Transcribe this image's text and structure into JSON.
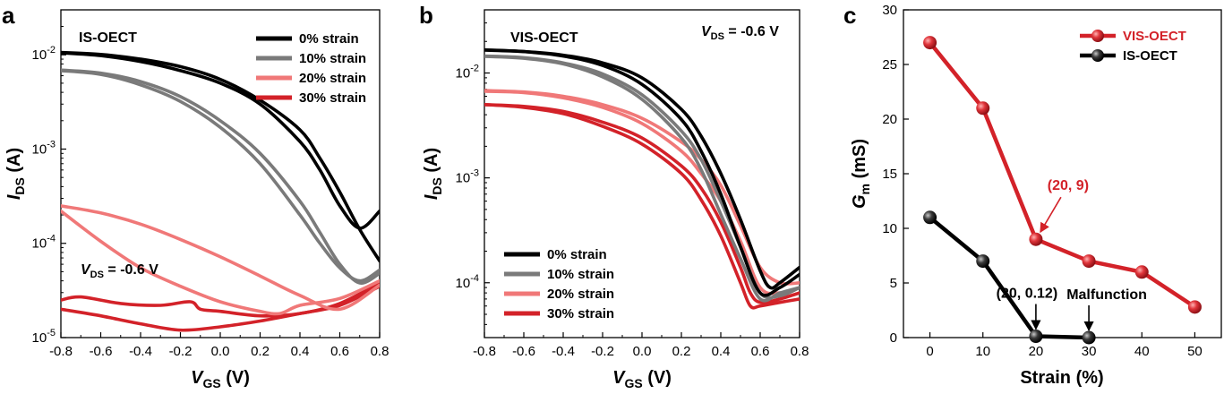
{
  "panels": {
    "a": {
      "letter": "a",
      "device": "IS-OECT",
      "vds_main": "V",
      "vds_sub": "DS",
      "vds_value": " = -0.6 V",
      "xlabel_main": "V",
      "xlabel_sub": "GS",
      "xlabel_unit": " (V)",
      "ylabel_main": "I",
      "ylabel_sub": "DS",
      "ylabel_unit": " (A)",
      "legend": [
        "0% strain",
        "10% strain",
        "20% strain",
        "30% strain"
      ]
    },
    "b": {
      "letter": "b",
      "device": "VIS-OECT",
      "vds_main": "V",
      "vds_sub": "DS",
      "vds_value": " = -0.6 V",
      "xlabel_main": "V",
      "xlabel_sub": "GS",
      "xlabel_unit": " (V)",
      "ylabel_main": "I",
      "ylabel_sub": "DS",
      "ylabel_unit": " (A)",
      "legend": [
        "0% strain",
        "10% strain",
        "20% strain",
        "30% strain"
      ]
    },
    "c": {
      "letter": "c",
      "xlabel": "Strain (%)",
      "ylabel_main": "G",
      "ylabel_sub": "m",
      "ylabel_unit": " (mS)",
      "legend": [
        "VIS-OECT",
        "IS-OECT"
      ],
      "annotation_red": "(20, 9)",
      "annotation_black": "(20, 0.12)",
      "annotation_malfunction": "Malfunction"
    }
  },
  "colors": {
    "black": "#000000",
    "gray": "#7a7a7a",
    "pink": "#f07878",
    "red": "#d32229"
  },
  "chart_data": [
    {
      "type": "line",
      "panel": "a",
      "title": "IS-OECT",
      "xlabel": "VGS (V)",
      "ylabel": "IDS (A)",
      "xlim": [
        -0.8,
        0.8
      ],
      "ylim": [
        1e-05,
        0.03
      ],
      "yscale": "log",
      "xticks": [
        "-0.8",
        "-0.6",
        "-0.4",
        "-0.2",
        "0.0",
        "0.2",
        "0.4",
        "0.6",
        "0.8"
      ],
      "yticks": [
        "10^-5",
        "10^-4",
        "10^-3",
        "10^-2"
      ],
      "legend_position": "top-right",
      "series": [
        {
          "name": "0% strain",
          "color": "black",
          "forward": [
            [
              -0.8,
              0.0105
            ],
            [
              -0.6,
              0.0098
            ],
            [
              -0.4,
              0.0085
            ],
            [
              -0.2,
              0.0068
            ],
            [
              0.0,
              0.005
            ],
            [
              0.2,
              0.003
            ],
            [
              0.4,
              0.0012
            ],
            [
              0.5,
              0.0006
            ],
            [
              0.6,
              0.00025
            ],
            [
              0.7,
              0.000145
            ],
            [
              0.8,
              0.00022
            ]
          ],
          "reverse": [
            [
              0.8,
              6.5e-05
            ],
            [
              0.7,
              0.00014
            ],
            [
              0.6,
              0.00035
            ],
            [
              0.5,
              0.0008
            ],
            [
              0.4,
              0.0016
            ],
            [
              0.2,
              0.0033
            ],
            [
              0.0,
              0.0055
            ],
            [
              -0.2,
              0.0075
            ],
            [
              -0.4,
              0.009
            ],
            [
              -0.6,
              0.0101
            ],
            [
              -0.8,
              0.0106
            ]
          ]
        },
        {
          "name": "10% strain",
          "color": "gray",
          "forward": [
            [
              -0.8,
              0.0068
            ],
            [
              -0.6,
              0.0062
            ],
            [
              -0.4,
              0.0048
            ],
            [
              -0.2,
              0.0032
            ],
            [
              0.0,
              0.0017
            ],
            [
              0.2,
              0.0007
            ],
            [
              0.4,
              0.0002
            ],
            [
              0.5,
              0.0001
            ],
            [
              0.6,
              5.5e-05
            ],
            [
              0.7,
              4e-05
            ],
            [
              0.8,
              5.2e-05
            ]
          ],
          "reverse": [
            [
              0.8,
              4.8e-05
            ],
            [
              0.7,
              3.8e-05
            ],
            [
              0.6,
              6e-05
            ],
            [
              0.5,
              0.00013
            ],
            [
              0.4,
              0.00028
            ],
            [
              0.2,
              0.0009
            ],
            [
              0.0,
              0.002
            ],
            [
              -0.2,
              0.0036
            ],
            [
              -0.4,
              0.0052
            ],
            [
              -0.6,
              0.0064
            ],
            [
              -0.8,
              0.0069
            ]
          ]
        },
        {
          "name": "20% strain",
          "color": "pink",
          "forward": [
            [
              -0.8,
              0.00025
            ],
            [
              -0.6,
              0.00021
            ],
            [
              -0.4,
              0.00016
            ],
            [
              -0.2,
              0.00011
            ],
            [
              0.0,
              7.2e-05
            ],
            [
              0.2,
              4.5e-05
            ],
            [
              0.4,
              2.8e-05
            ],
            [
              0.6,
              2e-05
            ],
            [
              0.8,
              3.6e-05
            ]
          ],
          "reverse": [
            [
              0.8,
              4e-05
            ],
            [
              0.6,
              2.6e-05
            ],
            [
              0.4,
              2.2e-05
            ],
            [
              0.3,
              1.8e-05
            ],
            [
              0.2,
              1.9e-05
            ],
            [
              0.0,
              2.4e-05
            ],
            [
              -0.2,
              3.5e-05
            ],
            [
              -0.4,
              5.5e-05
            ],
            [
              -0.6,
              0.000105
            ],
            [
              -0.8,
              0.00022
            ]
          ]
        },
        {
          "name": "30% strain",
          "color": "red",
          "forward": [
            [
              -0.8,
              2.5e-05
            ],
            [
              -0.7,
              2.7e-05
            ],
            [
              -0.5,
              2.3e-05
            ],
            [
              -0.3,
              2.2e-05
            ],
            [
              -0.15,
              2.4e-05
            ],
            [
              -0.1,
              2e-05
            ],
            [
              0.0,
              1.9e-05
            ],
            [
              0.2,
              1.7e-05
            ],
            [
              0.4,
              1.8e-05
            ],
            [
              0.6,
              2.3e-05
            ],
            [
              0.8,
              3.8e-05
            ]
          ],
          "reverse": [
            [
              0.8,
              3.5e-05
            ],
            [
              0.6,
              2.2e-05
            ],
            [
              0.4,
              1.8e-05
            ],
            [
              0.2,
              1.5e-05
            ],
            [
              0.0,
              1.3e-05
            ],
            [
              -0.2,
              1.2e-05
            ],
            [
              -0.4,
              1.4e-05
            ],
            [
              -0.6,
              1.7e-05
            ],
            [
              -0.8,
              2e-05
            ]
          ]
        }
      ]
    },
    {
      "type": "line",
      "panel": "b",
      "title": "VIS-OECT",
      "xlabel": "VGS (V)",
      "ylabel": "IDS (A)",
      "xlim": [
        -0.8,
        0.8
      ],
      "ylim": [
        3e-05,
        0.04
      ],
      "yscale": "log",
      "xticks": [
        "-0.8",
        "-0.6",
        "-0.4",
        "-0.2",
        "0.0",
        "0.2",
        "0.4",
        "0.6",
        "0.8"
      ],
      "yticks": [
        "10^-4",
        "10^-3",
        "10^-2"
      ],
      "legend_position": "bottom-left",
      "series": [
        {
          "name": "0% strain",
          "color": "black",
          "forward": [
            [
              -0.8,
              0.0165
            ],
            [
              -0.6,
              0.016
            ],
            [
              -0.4,
              0.0148
            ],
            [
              -0.2,
              0.0125
            ],
            [
              0.0,
              0.009
            ],
            [
              0.2,
              0.0045
            ],
            [
              0.3,
              0.0025
            ],
            [
              0.4,
              0.0011
            ],
            [
              0.5,
              0.0004
            ],
            [
              0.6,
              0.00013
            ],
            [
              0.65,
              9e-05
            ],
            [
              0.7,
              0.0001
            ],
            [
              0.8,
              0.00014
            ]
          ],
          "reverse": [
            [
              0.8,
              0.00012
            ],
            [
              0.7,
              9e-05
            ],
            [
              0.6,
              8e-05
            ],
            [
              0.5,
              0.00022
            ],
            [
              0.4,
              0.0007
            ],
            [
              0.3,
              0.0018
            ],
            [
              0.2,
              0.0036
            ],
            [
              0.0,
              0.0078
            ],
            [
              -0.2,
              0.0118
            ],
            [
              -0.4,
              0.0145
            ],
            [
              -0.6,
              0.016
            ],
            [
              -0.8,
              0.0166
            ]
          ]
        },
        {
          "name": "10% strain",
          "color": "gray",
          "forward": [
            [
              -0.8,
              0.0145
            ],
            [
              -0.6,
              0.014
            ],
            [
              -0.4,
              0.0125
            ],
            [
              -0.2,
              0.0098
            ],
            [
              0.0,
              0.0062
            ],
            [
              0.2,
              0.0028
            ],
            [
              0.3,
              0.0015
            ],
            [
              0.4,
              0.0006
            ],
            [
              0.5,
              0.00022
            ],
            [
              0.6,
              8e-05
            ],
            [
              0.7,
              7.5e-05
            ],
            [
              0.8,
              9e-05
            ]
          ],
          "reverse": [
            [
              0.8,
              9e-05
            ],
            [
              0.7,
              8e-05
            ],
            [
              0.6,
              7e-05
            ],
            [
              0.5,
              0.00017
            ],
            [
              0.4,
              0.00045
            ],
            [
              0.3,
              0.0012
            ],
            [
              0.2,
              0.0024
            ],
            [
              0.0,
              0.0056
            ],
            [
              -0.2,
              0.0092
            ],
            [
              -0.4,
              0.0122
            ],
            [
              -0.6,
              0.0138
            ],
            [
              -0.8,
              0.0144
            ]
          ]
        },
        {
          "name": "20% strain",
          "color": "pink",
          "forward": [
            [
              -0.8,
              0.0068
            ],
            [
              -0.6,
              0.0066
            ],
            [
              -0.4,
              0.006
            ],
            [
              -0.2,
              0.005
            ],
            [
              0.0,
              0.0037
            ],
            [
              0.2,
              0.0022
            ],
            [
              0.3,
              0.0015
            ],
            [
              0.4,
              0.00085
            ],
            [
              0.5,
              0.00035
            ],
            [
              0.6,
              0.00014
            ],
            [
              0.7,
              0.0001
            ],
            [
              0.8,
              0.0001
            ]
          ],
          "reverse": [
            [
              0.8,
              9e-05
            ],
            [
              0.7,
              8e-05
            ],
            [
              0.6,
              9e-05
            ],
            [
              0.5,
              0.00025
            ],
            [
              0.4,
              0.0006
            ],
            [
              0.3,
              0.0011
            ],
            [
              0.2,
              0.0018
            ],
            [
              0.0,
              0.0033
            ],
            [
              -0.2,
              0.0047
            ],
            [
              -0.4,
              0.0058
            ],
            [
              -0.6,
              0.0065
            ],
            [
              -0.8,
              0.0067
            ]
          ]
        },
        {
          "name": "30% strain",
          "color": "red",
          "forward": [
            [
              -0.8,
              0.005
            ],
            [
              -0.6,
              0.0048
            ],
            [
              -0.4,
              0.0043
            ],
            [
              -0.2,
              0.0034
            ],
            [
              0.0,
              0.0024
            ],
            [
              0.2,
              0.0013
            ],
            [
              0.3,
              0.0008
            ],
            [
              0.4,
              0.00038
            ],
            [
              0.5,
              0.00014
            ],
            [
              0.55,
              8e-05
            ],
            [
              0.6,
              6.5e-05
            ],
            [
              0.7,
              7e-05
            ],
            [
              0.8,
              8e-05
            ]
          ],
          "reverse": [
            [
              0.8,
              7e-05
            ],
            [
              0.7,
              6.5e-05
            ],
            [
              0.6,
              6e-05
            ],
            [
              0.55,
              6e-05
            ],
            [
              0.5,
              0.0001
            ],
            [
              0.4,
              0.00028
            ],
            [
              0.3,
              0.00062
            ],
            [
              0.2,
              0.0011
            ],
            [
              0.0,
              0.0021
            ],
            [
              -0.2,
              0.0031
            ],
            [
              -0.4,
              0.0041
            ],
            [
              -0.6,
              0.0047
            ],
            [
              -0.8,
              0.005
            ]
          ]
        }
      ]
    },
    {
      "type": "line",
      "panel": "c",
      "xlabel": "Strain (%)",
      "ylabel": "Gm (mS)",
      "xlim": [
        -5,
        55
      ],
      "ylim": [
        0,
        30
      ],
      "xticks": [
        0,
        10,
        20,
        30,
        40,
        50
      ],
      "yticks": [
        0,
        5,
        10,
        15,
        20,
        25,
        30
      ],
      "legend_position": "top-right",
      "series": [
        {
          "name": "VIS-OECT",
          "color": "red",
          "x": [
            0,
            10,
            20,
            30,
            40,
            50
          ],
          "y": [
            27,
            21,
            9,
            7,
            6,
            2.8
          ]
        },
        {
          "name": "IS-OECT",
          "color": "black",
          "x": [
            0,
            10,
            20,
            30
          ],
          "y": [
            11,
            7,
            0.12,
            0
          ]
        }
      ],
      "annotations": [
        {
          "text": "(20, 9)",
          "x": 20,
          "y": 9
        },
        {
          "text": "(20, 0.12)",
          "x": 20,
          "y": 0.12
        },
        {
          "text": "Malfunction",
          "x": 30,
          "y": 0
        }
      ]
    }
  ]
}
